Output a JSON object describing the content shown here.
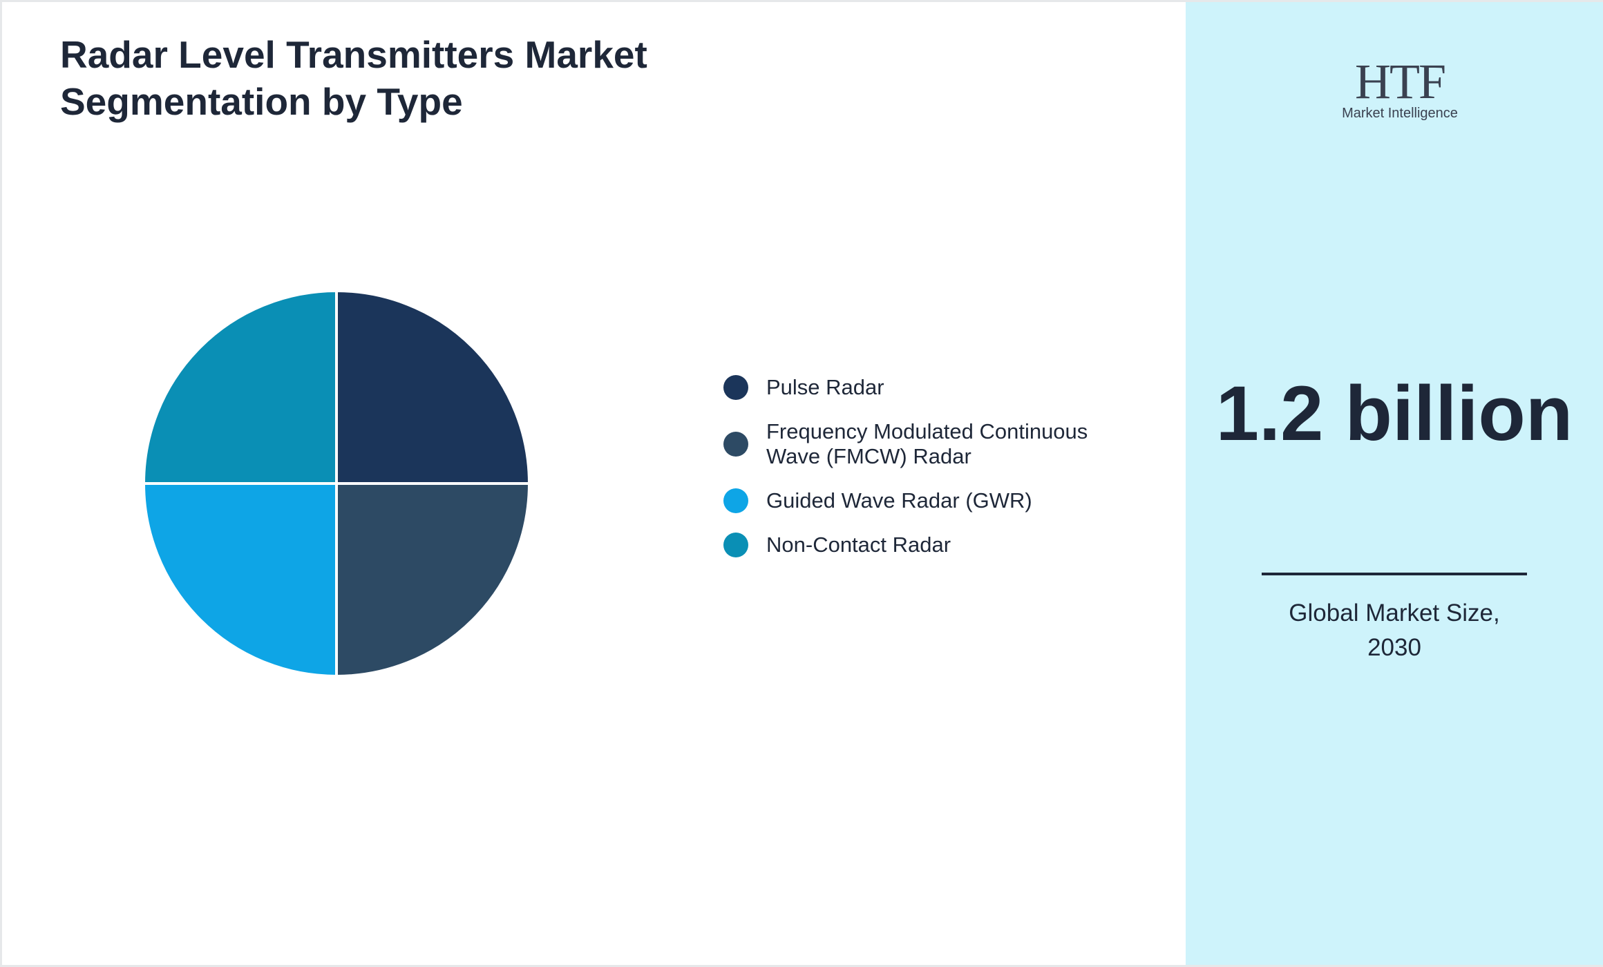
{
  "chart_data": {
    "type": "pie",
    "title": "Radar Level Transmitters Market Segmentation by Type",
    "categories": [
      "Pulse Radar",
      "Frequency Modulated Continuous Wave (FMCW) Radar",
      "Guided Wave Radar (GWR)",
      "Non-Contact Radar"
    ],
    "values": [
      25,
      25,
      25,
      25
    ],
    "colors": [
      "#1b355a",
      "#2d4a64",
      "#0ea5e6",
      "#0a8fb5"
    ]
  },
  "side_panel": {
    "logo": {
      "mark": "HTF",
      "tagline": "Market Intelligence"
    },
    "value": "1.2 billion",
    "label": "Global Market Size, 2030"
  }
}
